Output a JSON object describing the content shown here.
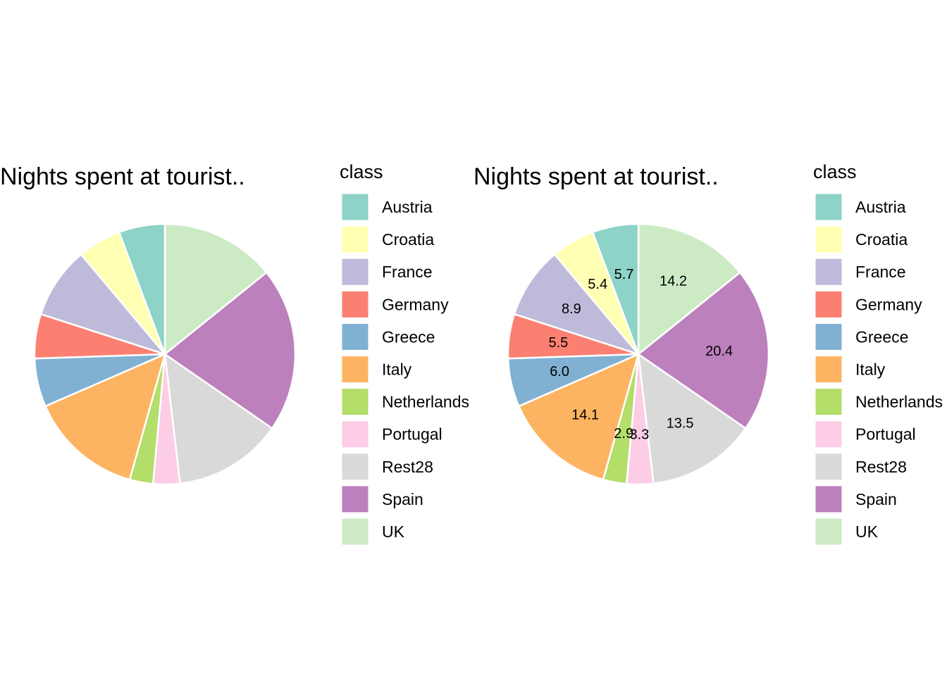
{
  "chart_data": [
    {
      "type": "pie",
      "title": "Nights spent at tourist..",
      "legend_title": "class",
      "legend_position": "right",
      "show_labels": false,
      "slices": [
        {
          "name": "UK",
          "value": 14.2,
          "color": "#CCEBC5"
        },
        {
          "name": "Spain",
          "value": 20.4,
          "color": "#BC80BD"
        },
        {
          "name": "Rest28",
          "value": 13.5,
          "color": "#D9D9D9"
        },
        {
          "name": "Portugal",
          "value": 3.3,
          "color": "#FCCDE5"
        },
        {
          "name": "Netherlands",
          "value": 2.9,
          "color": "#B3DE69"
        },
        {
          "name": "Italy",
          "value": 14.1,
          "color": "#FDB462"
        },
        {
          "name": "Greece",
          "value": 6.0,
          "color": "#80B1D3"
        },
        {
          "name": "Germany",
          "value": 5.5,
          "color": "#FB8072"
        },
        {
          "name": "France",
          "value": 8.9,
          "color": "#BEBADA"
        },
        {
          "name": "Croatia",
          "value": 5.4,
          "color": "#FFFFB3"
        },
        {
          "name": "Austria",
          "value": 5.7,
          "color": "#8DD3C7"
        }
      ],
      "legend": [
        "Austria",
        "Croatia",
        "France",
        "Germany",
        "Greece",
        "Italy",
        "Netherlands",
        "Portugal",
        "Rest28",
        "Spain",
        "UK"
      ]
    },
    {
      "type": "pie",
      "title": "Nights spent at tourist..",
      "legend_title": "class",
      "legend_position": "right",
      "show_labels": true,
      "slices": [
        {
          "name": "UK",
          "value": 14.2,
          "label": "14.2",
          "color": "#CCEBC5"
        },
        {
          "name": "Spain",
          "value": 20.4,
          "label": "20.4",
          "color": "#BC80BD"
        },
        {
          "name": "Rest28",
          "value": 13.5,
          "label": "13.5",
          "color": "#D9D9D9"
        },
        {
          "name": "Portugal",
          "value": 3.3,
          "label": "3.3",
          "color": "#FCCDE5"
        },
        {
          "name": "Netherlands",
          "value": 2.9,
          "label": "2.9",
          "color": "#B3DE69"
        },
        {
          "name": "Italy",
          "value": 14.1,
          "label": "14.1",
          "color": "#FDB462"
        },
        {
          "name": "Greece",
          "value": 6.0,
          "label": "6.0",
          "color": "#80B1D3"
        },
        {
          "name": "Germany",
          "value": 5.5,
          "label": "5.5",
          "color": "#FB8072"
        },
        {
          "name": "France",
          "value": 8.9,
          "label": "8.9",
          "color": "#BEBADA"
        },
        {
          "name": "Croatia",
          "value": 5.4,
          "label": "5.4",
          "color": "#FFFFB3"
        },
        {
          "name": "Austria",
          "value": 5.7,
          "label": "5.7",
          "color": "#8DD3C7"
        }
      ],
      "legend": [
        "Austria",
        "Croatia",
        "France",
        "Germany",
        "Greece",
        "Italy",
        "Netherlands",
        "Portugal",
        "Rest28",
        "Spain",
        "UK"
      ]
    }
  ]
}
